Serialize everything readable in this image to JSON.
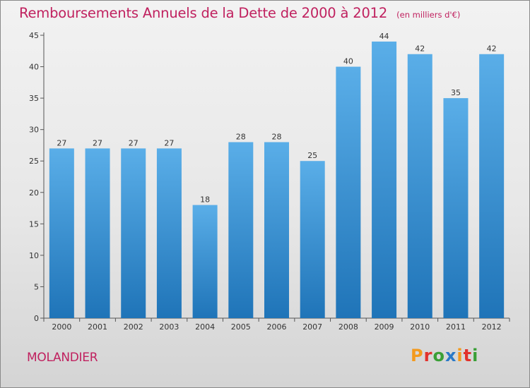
{
  "header": {
    "title": "Remboursements Annuels de la Dette de 2000 à 2012",
    "unit": "(en milliers d'€)"
  },
  "footer": {
    "commune": "MOLANDIER",
    "logo_text": "Proxiti",
    "logo_colors": [
      "#f39a1e",
      "#e2322c",
      "#3a9f36",
      "#2a79c8",
      "#f39a1e",
      "#e2322c",
      "#3a9f36"
    ]
  },
  "colors": {
    "accent": "#c0215f",
    "bar_top": "#5aaee8",
    "bar_bottom": "#1f74b8"
  },
  "chart_data": {
    "type": "bar",
    "categories": [
      "2000",
      "2001",
      "2002",
      "2003",
      "2004",
      "2005",
      "2006",
      "2007",
      "2008",
      "2009",
      "2010",
      "2011",
      "2012"
    ],
    "values": [
      27,
      27,
      27,
      27,
      18,
      28,
      28,
      25,
      40,
      44,
      42,
      35,
      42
    ],
    "value_labels": [
      "27",
      "27",
      "27",
      "27",
      "18",
      "28",
      "28",
      "25",
      "40",
      "44",
      "42",
      "35",
      "42"
    ],
    "yticks": [
      "0",
      "5",
      "10",
      "15",
      "20",
      "25",
      "30",
      "35",
      "40",
      "45"
    ],
    "ylim": [
      0,
      45
    ],
    "title": "Remboursements Annuels de la Dette de 2000 à 2012",
    "xlabel": "",
    "ylabel": "",
    "grid": false,
    "legend": "none"
  }
}
